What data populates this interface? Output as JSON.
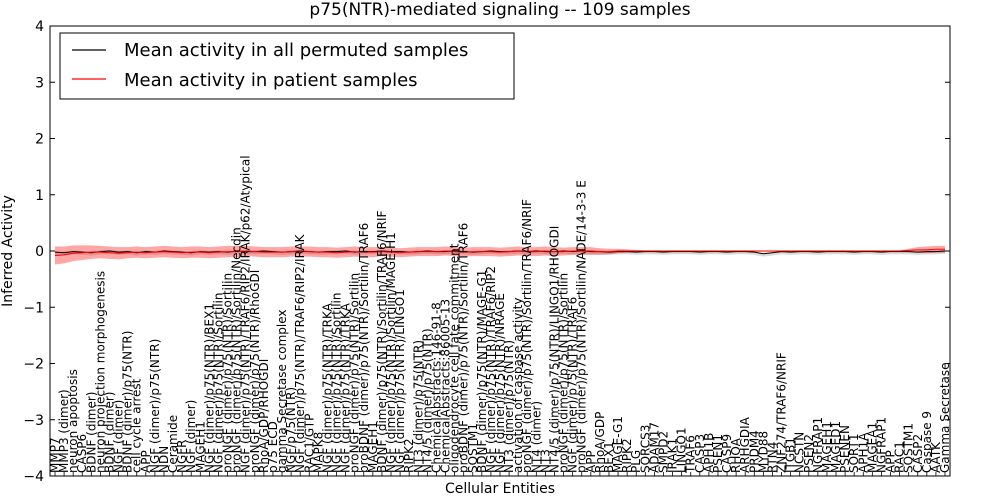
{
  "chart_data": {
    "type": "line",
    "title": "p75(NTR)-mediated signaling -- 109 samples",
    "xlabel": "Cellular Entities",
    "ylabel": "Inferred Activity",
    "ylim": [
      -4,
      4
    ],
    "yticks": [
      -4,
      -3,
      -2,
      -1,
      0,
      1,
      2,
      3,
      4
    ],
    "grid": false,
    "legend_position": "top-left",
    "legend": [
      {
        "label": "Mean activity in all permuted samples",
        "color": "#000000"
      },
      {
        "label": "Mean activity in patient samples",
        "color": "#ff0000"
      }
    ],
    "categories": [
      "MMP7",
      "MMP3 (dimer)",
      "neuron apoptosis",
      "CASP6",
      "BDNF (dimer)",
      "neuron projection morphogenesis",
      "BDNF (dimer)",
      "NGF (dimer)",
      "BDNF (dimer)/p75(NTR)",
      "cell cycle arrest",
      "APP",
      "NGF (dimer)/p75(NTR)",
      "NDN",
      "Ceramide",
      "NGFR",
      "NGF (dimer)",
      "MAGEH1",
      "NGF (dimer)/p75(NTR)/BEX1",
      "NGF (dimer)/p75(NTR)/Sortilin",
      "proNGF (dimer)/p75(NTR)/Sortilin",
      "proNGF (dimer)/p75(NTR)/Sortilin/Necdin",
      "NGF (dimer)/p75(NTR)/TRAF6/RIP2/IRAK/p62/Atypical",
      "proNGF (dimer)/p75(NTR)/RhoGDI",
      "RhoA/GDP/RHOGDI",
      "p75 ECD",
      "gamma Secretase complex",
      "NGF/p75(NTR)",
      "NGF (dimer)/p75(NTR)/TRAF6/RIP2/IRAK",
      "RAC1/GTP",
      "MAPK8",
      "NGF (dimer)/p75(NTR)/TRKA",
      "NGF (dimer)/p75(NTR)/Sortilin",
      "NGF (dimer)/p75(NTR)/TRKA",
      "proNGF (dimer)/p75(NTR)/Sortilin",
      "proBDNF (dimer)/p75(NTR)/Sortilin/TRAF6",
      "MAGEH1",
      "BDNF (dimer)/p75(NTR)/Sortilin/TRAF6/NRIF",
      "NGF (dimer)/p75(NTR)/Sortilin/MAGE-H1",
      "NGF (dimer)/p75(NTR)/LINGO1",
      "RIPK2",
      "NT3 (dimer)/p75(NTR)",
      "NT4/5 (dimer)/p75(NTR)",
      "ChemicalAbstracts:146-91-8",
      "ChemicalAbstracts:86005-13",
      "oligodendrocyte cell fate commitment",
      "proBDNF (dimer)/p75(NTR)/Sortilin/TRAF6",
      "SQSTM1",
      "BDNF (dimer)/p75(NTR)/MAGE-G1",
      "NGF (dimer)/p75(NTR)/TRAF6/RIP2",
      "NGF (dimer)/p75(NTR)/NRAGE",
      "NT3 (dimer)/p75(NTR)",
      "activation of caspase activity",
      "proNGF (dimer)/p75(NTR)/Sortilin/TRAF6/NRIF",
      "NT4 (dimer)",
      "NT3",
      "NT4/5 (dimer)/p75(NTR)/LINGO1/RHOGDI",
      "proNGF (dimer)/p75(NTR)/Sortilin",
      "NGF (dimer)/p75(NTR)/TRAF6",
      "proNGF (dimer)/p75(NTR)/Sortilin/NADE/14-3-3 E",
      "APP",
      "RhoA/GDP",
      "BEX1",
      "MAGE-G1",
      "RIPK2",
      "PLG",
      "SORCS3",
      "ADAM17",
      "SMPD2",
      "IRAK1",
      "LINGO1",
      "TRAF6",
      "CASP3",
      "APH1B",
      "PSEN1",
      "CASP9",
      "RHOA",
      "ARHGDIA",
      "PRDM4",
      "MYD88",
      "RTN4",
      "ZNF274/TRAF6/NRIF",
      "ITGB1",
      "NCSTN",
      "PSEN2",
      "NGFRAP1",
      "MAGEH1",
      "MAGED1",
      "PSENEN",
      "SORT1",
      "APH1A",
      "MAGEA1",
      "NGFRAP1",
      "APP",
      "RAC1",
      "SQSTM1",
      "CASP2",
      "Caspase 9",
      "AATK",
      "Gamma Secretase"
    ],
    "series": [
      {
        "name": "Mean activity in all permuted samples",
        "values": [
          -0.02,
          -0.03,
          -0.01,
          -0.02,
          -0.03,
          -0.01,
          0.0,
          -0.02,
          -0.01,
          -0.03,
          -0.01,
          -0.02,
          0.0,
          -0.01,
          -0.02,
          -0.03,
          -0.01,
          -0.02,
          -0.01,
          -0.02,
          0.0,
          -0.01,
          -0.01,
          0.0,
          -0.01,
          -0.02,
          -0.01,
          0.0,
          -0.01,
          -0.02,
          -0.01,
          -0.01,
          0.0,
          -0.02,
          -0.01,
          -0.01,
          0.0,
          -0.01,
          -0.01,
          -0.02,
          -0.01,
          0.0,
          -0.01,
          -0.01,
          0.0,
          -0.01,
          -0.02,
          -0.01,
          0.0,
          -0.01,
          -0.01,
          0.0,
          -0.01,
          0.0,
          -0.01,
          -0.01,
          0.0,
          -0.01,
          0.0,
          -0.01,
          -0.01,
          -0.02,
          -0.01,
          -0.01,
          -0.02,
          -0.01,
          -0.01,
          -0.02,
          -0.01,
          -0.01,
          -0.01,
          -0.02,
          -0.01,
          -0.01,
          -0.02,
          -0.01,
          -0.01,
          -0.02,
          -0.05,
          -0.03,
          -0.01,
          -0.02,
          -0.01,
          -0.01,
          -0.02,
          -0.01,
          -0.01,
          -0.01,
          -0.02,
          -0.01,
          -0.01,
          -0.02,
          -0.01,
          -0.01,
          -0.01,
          -0.02,
          -0.01,
          -0.01,
          0.0
        ]
      },
      {
        "name": "Mean activity in patient samples",
        "values": [
          -0.08,
          -0.07,
          -0.04,
          -0.03,
          -0.02,
          -0.02,
          -0.03,
          -0.04,
          -0.03,
          -0.02,
          -0.03,
          -0.02,
          -0.01,
          -0.02,
          -0.03,
          -0.02,
          -0.02,
          -0.03,
          -0.02,
          -0.01,
          -0.01,
          0.0,
          -0.01,
          -0.02,
          -0.02,
          -0.02,
          -0.01,
          -0.01,
          -0.01,
          -0.02,
          -0.02,
          -0.03,
          -0.02,
          -0.01,
          -0.02,
          -0.02,
          -0.01,
          -0.02,
          -0.03,
          -0.02,
          -0.01,
          -0.01,
          -0.01,
          0.0,
          -0.01,
          -0.02,
          -0.01,
          -0.01,
          -0.01,
          -0.02,
          -0.01,
          0.0,
          -0.01,
          -0.01,
          0.0,
          -0.01,
          -0.01,
          0.0,
          0.0,
          0.0,
          -0.01,
          -0.01,
          0.0,
          0.0,
          0.0,
          0.0,
          0.0,
          0.0,
          0.0,
          0.0,
          0.0,
          0.0,
          0.0,
          0.0,
          0.0,
          0.0,
          0.0,
          0.0,
          0.0,
          0.0,
          0.0,
          0.0,
          0.0,
          0.0,
          0.0,
          0.0,
          0.0,
          0.0,
          0.0,
          0.0,
          0.0,
          0.0,
          0.0,
          0.0,
          0.01,
          0.02,
          0.02,
          0.03,
          0.03
        ]
      }
    ],
    "permuted_band": {
      "lower_offset": -0.05,
      "upper_offset": 0.02
    },
    "patient_band_width": [
      0.16,
      0.15,
      0.14,
      0.13,
      0.12,
      0.11,
      0.11,
      0.11,
      0.1,
      0.1,
      0.1,
      0.1,
      0.1,
      0.1,
      0.1,
      0.1,
      0.1,
      0.1,
      0.1,
      0.1,
      0.1,
      0.09,
      0.09,
      0.09,
      0.09,
      0.09,
      0.09,
      0.09,
      0.09,
      0.09,
      0.09,
      0.09,
      0.09,
      0.09,
      0.09,
      0.09,
      0.08,
      0.08,
      0.08,
      0.08,
      0.08,
      0.08,
      0.08,
      0.08,
      0.08,
      0.08,
      0.08,
      0.08,
      0.08,
      0.08,
      0.08,
      0.08,
      0.08,
      0.08,
      0.08,
      0.08,
      0.07,
      0.07,
      0.07,
      0.07,
      0.06,
      0.05,
      0.04,
      0.03,
      0.02,
      0.01,
      0.01,
      0.01,
      0.01,
      0.01,
      0.01,
      0.01,
      0.01,
      0.01,
      0.01,
      0.01,
      0.01,
      0.01,
      0.01,
      0.01,
      0.01,
      0.01,
      0.01,
      0.01,
      0.01,
      0.01,
      0.01,
      0.01,
      0.01,
      0.01,
      0.01,
      0.01,
      0.01,
      0.01,
      0.03,
      0.05,
      0.06,
      0.06,
      0.06
    ]
  }
}
